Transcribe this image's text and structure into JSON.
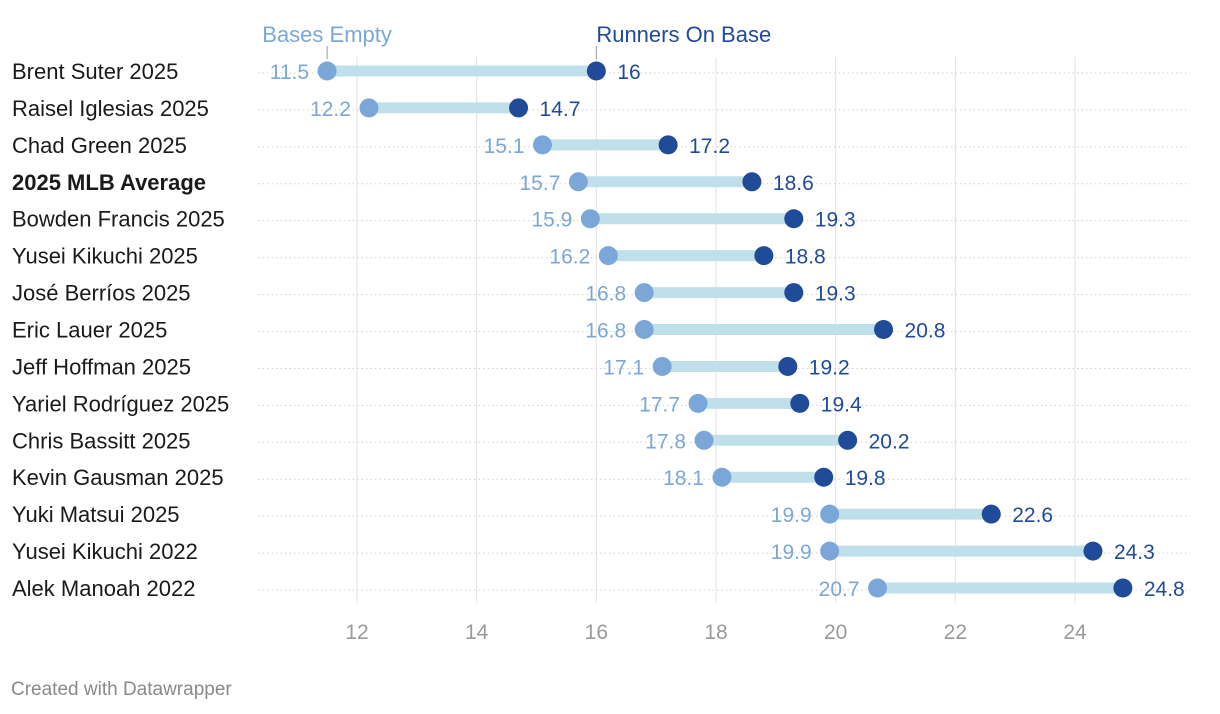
{
  "chart_data": {
    "type": "dot-range",
    "legend": {
      "bases_empty": "Bases Empty",
      "runners_on_base": "Runners On Base"
    },
    "series": [
      {
        "name": "Bases Empty",
        "color": "#7aa7d8"
      },
      {
        "name": "Runners On Base",
        "color": "#1f4b99"
      }
    ],
    "bar_color": "#bfe0ea",
    "x_ticks": [
      12,
      14,
      16,
      18,
      20,
      22,
      24
    ],
    "x_tick_labels": [
      "12",
      "14",
      "16",
      "18",
      "20",
      "22",
      "24"
    ],
    "xlim": [
      10.2,
      25.5
    ],
    "rows": [
      {
        "label": "Brent Suter 2025",
        "bold": false,
        "empty": 11.5,
        "empty_label": "11.5",
        "runners": 16,
        "runners_label": "16"
      },
      {
        "label": "Raisel Iglesias 2025",
        "bold": false,
        "empty": 12.2,
        "empty_label": "12.2",
        "runners": 14.7,
        "runners_label": "14.7"
      },
      {
        "label": "Chad Green 2025",
        "bold": false,
        "empty": 15.1,
        "empty_label": "15.1",
        "runners": 17.2,
        "runners_label": "17.2"
      },
      {
        "label": "2025 MLB Average",
        "bold": true,
        "empty": 15.7,
        "empty_label": "15.7",
        "runners": 18.6,
        "runners_label": "18.6"
      },
      {
        "label": "Bowden Francis 2025",
        "bold": false,
        "empty": 15.9,
        "empty_label": "15.9",
        "runners": 19.3,
        "runners_label": "19.3"
      },
      {
        "label": "Yusei Kikuchi 2025",
        "bold": false,
        "empty": 16.2,
        "empty_label": "16.2",
        "runners": 18.8,
        "runners_label": "18.8"
      },
      {
        "label": "José Berríos 2025",
        "bold": false,
        "empty": 16.8,
        "empty_label": "16.8",
        "runners": 19.3,
        "runners_label": "19.3"
      },
      {
        "label": "Eric Lauer 2025",
        "bold": false,
        "empty": 16.8,
        "empty_label": "16.8",
        "runners": 20.8,
        "runners_label": "20.8"
      },
      {
        "label": "Jeff Hoffman 2025",
        "bold": false,
        "empty": 17.1,
        "empty_label": "17.1",
        "runners": 19.2,
        "runners_label": "19.2"
      },
      {
        "label": "Yariel Rodríguez 2025",
        "bold": false,
        "empty": 17.7,
        "empty_label": "17.7",
        "runners": 19.4,
        "runners_label": "19.4"
      },
      {
        "label": "Chris Bassitt 2025",
        "bold": false,
        "empty": 17.8,
        "empty_label": "17.8",
        "runners": 20.2,
        "runners_label": "20.2"
      },
      {
        "label": "Kevin Gausman 2025",
        "bold": false,
        "empty": 18.1,
        "empty_label": "18.1",
        "runners": 19.8,
        "runners_label": "19.8"
      },
      {
        "label": "Yuki Matsui 2025",
        "bold": false,
        "empty": 19.9,
        "empty_label": "19.9",
        "runners": 22.6,
        "runners_label": "22.6"
      },
      {
        "label": "Yusei Kikuchi 2022",
        "bold": false,
        "empty": 19.9,
        "empty_label": "19.9",
        "runners": 24.3,
        "runners_label": "24.3"
      },
      {
        "label": "Alek Manoah 2022",
        "bold": false,
        "empty": 20.7,
        "empty_label": "20.7",
        "runners": 24.8,
        "runners_label": "24.8"
      }
    ]
  },
  "footer": {
    "credit": "Created with Datawrapper"
  }
}
